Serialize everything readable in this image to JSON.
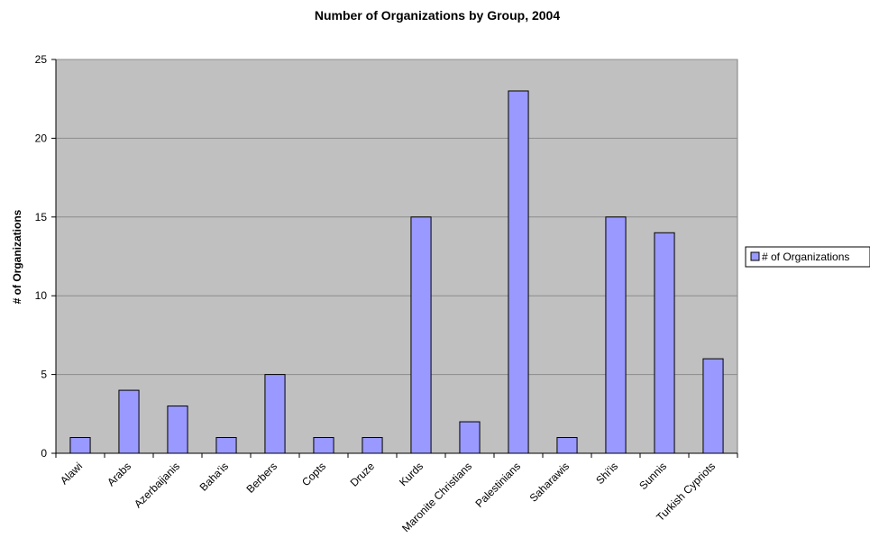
{
  "chart_data": {
    "type": "bar",
    "title": "Number of  Organizations by Group, 2004",
    "xlabel": "",
    "ylabel": "# of Organizations",
    "ylim": [
      0,
      25
    ],
    "yticks": [
      0,
      5,
      10,
      15,
      20,
      25
    ],
    "grid": true,
    "legend_position": "right",
    "categories": [
      "Alawi",
      "Arabs",
      "Azerbaijanis",
      "Baha'is",
      "Berbers",
      "Copts",
      "Druze",
      "Kurds",
      "Maronite Christians",
      "Palestinians",
      "Saharawis",
      "Shi'is",
      "Sunnis",
      "Turkish Cypriots"
    ],
    "series": [
      {
        "name": "# of Organizations",
        "values": [
          1,
          4,
          3,
          1,
          5,
          1,
          1,
          15,
          2,
          23,
          1,
          15,
          14,
          6
        ]
      }
    ],
    "colors": {
      "bar_fill": "#9999ff",
      "bar_stroke": "#000000",
      "plot_background": "#c0c0c0",
      "gridline": "#8c8c8c",
      "axis": "#000000"
    }
  }
}
